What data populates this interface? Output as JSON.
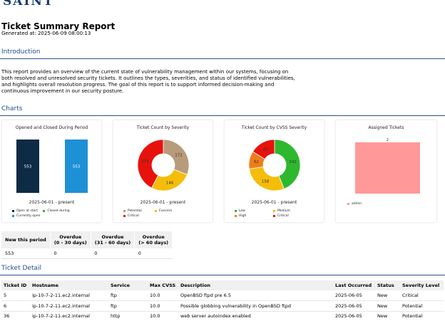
{
  "logo": "SAINT",
  "report": {
    "title": "Ticket Summary Report",
    "generated": "Generated at: 2025-06-09 08:00:13"
  },
  "sections": {
    "introduction": "Introduction",
    "charts": "Charts",
    "ticket_detail": "Ticket Detail"
  },
  "intro_text": "This report provides an overview of the current state of vulnerability management within our systems, focusing on both resolved and unresolved security tickets. It outlines the types, severities, and status of identified vulnerabilities, and highlights overall resolution progress. The goal of this report is to support informed decision-making and continuous improvement in our security posture.",
  "colors": {
    "navy": "#0d2b45",
    "blue": "#1e90d6",
    "green": "#2eb82e",
    "tan": "#b89b7a",
    "yellow": "#f5bd0a",
    "red": "#e8120c",
    "orange": "#f07d1a",
    "pink": "#ff9999"
  },
  "chart_data": [
    {
      "type": "bar",
      "title": "Opened and Closed During Period",
      "subtitle": "2025-06-01 - present",
      "categories": [
        "Open at start",
        "Currently open"
      ],
      "values": [
        553,
        553
      ],
      "legend": [
        "Open at start",
        "Closed during",
        "Currently open"
      ],
      "legend_colors": [
        "#0d2b45",
        "#2eb82e",
        "#1e90d6"
      ]
    },
    {
      "type": "pie",
      "title": "Ticket Count by Severity",
      "subtitle": "2025-06-01 - present",
      "labels": [
        "Potential",
        "Concern",
        "Critical"
      ],
      "values": [
        172,
        146,
        235
      ],
      "colors": [
        "#b89b7a",
        "#f5bd0a",
        "#e8120c"
      ]
    },
    {
      "type": "pie",
      "title": "Ticket Count by CVSS Severity",
      "subtitle": "2025-06-01 - present",
      "labels": [
        "Low",
        "Medium",
        "High",
        "Critical"
      ],
      "values": [
        242,
        158,
        62,
        89
      ],
      "colors": [
        "#2eb82e",
        "#f5bd0a",
        "#f07d1a",
        "#e8120c"
      ]
    },
    {
      "type": "bar",
      "title": "Assigned Tickets",
      "categories": [
        "admin"
      ],
      "values": [
        2
      ],
      "legend": [
        "admin"
      ],
      "legend_colors": [
        "#ff9999"
      ]
    }
  ],
  "summary_table": {
    "headers": [
      "New this period",
      "Overdue\n(0 - 30 days)",
      "Overdue\n(31 - 60 days)",
      "Overdue\n(> 60 days)"
    ],
    "rows": [
      [
        "553",
        "0",
        "0",
        "0"
      ]
    ]
  },
  "detail_table": {
    "headers": [
      "Ticket ID",
      "Hostname",
      "Service",
      "Max CVSS",
      "Description",
      "Last Occurred",
      "Status",
      "Severity Level"
    ],
    "rows": [
      [
        "5",
        "ip-10-7-2-11.ec2.internal",
        "ftp",
        "10.0",
        "OpenBSD ftpd pre 6.5",
        "2025-06-05",
        "New",
        "Critical"
      ],
      [
        "6",
        "ip-10-7-2-11.ec2.internal",
        "ftp",
        "10.0",
        "Possible globbing vulnerability in OpenBSD ftpd",
        "2025-06-05",
        "New",
        "Potential"
      ],
      [
        "36",
        "ip-10-7-2-11.ec2.internal",
        "http",
        "10.0",
        "web server autoindex enabled",
        "2025-06-05",
        "New",
        "Potential"
      ]
    ]
  }
}
